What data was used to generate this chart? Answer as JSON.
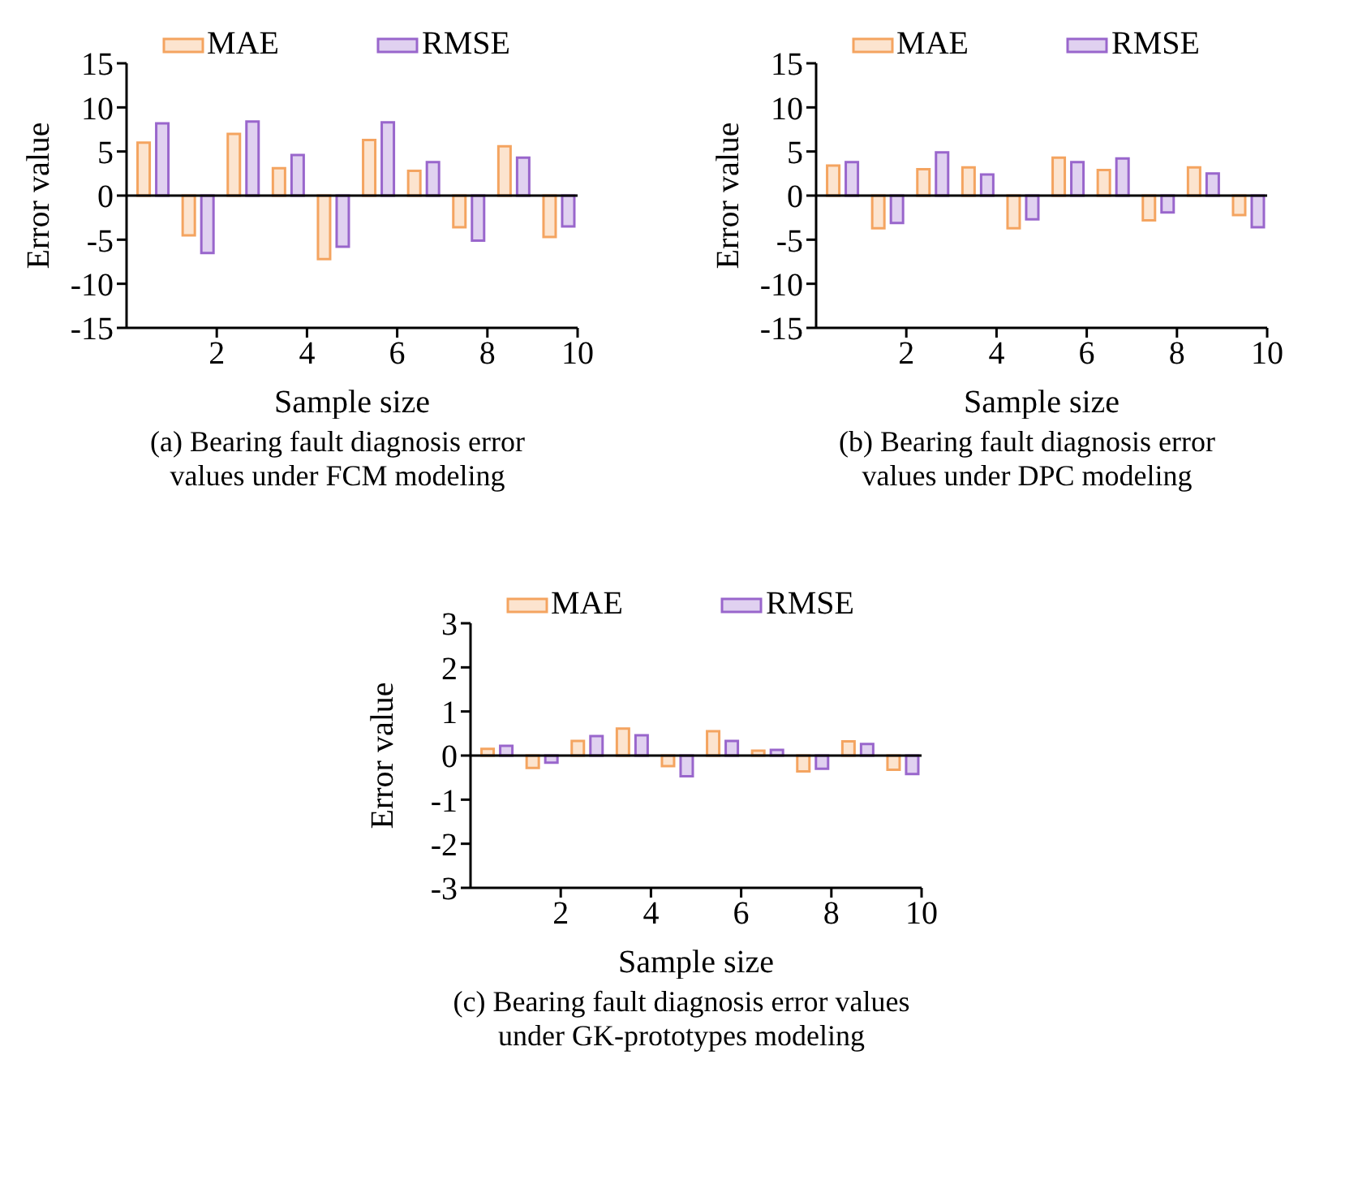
{
  "chart_data": [
    {
      "type": "bar",
      "title": "(a) Bearing fault diagnosis error values under FCM modeling",
      "xlabel": "Sample size",
      "ylabel": "Error value",
      "x": [
        0.6,
        1.6,
        2.6,
        3.6,
        4.6,
        5.6,
        6.6,
        7.6,
        8.6,
        9.6
      ],
      "xlim": [
        0,
        10
      ],
      "xticks": [
        2,
        4,
        6,
        8,
        10
      ],
      "ylim": [
        -15,
        15
      ],
      "yticks": [
        -15,
        -10,
        -5,
        0,
        5,
        10,
        15
      ],
      "legend": "top",
      "ref_lines": [
        {
          "axis": "y",
          "value": 0
        }
      ],
      "series": [
        {
          "name": "MAE",
          "color": "#f4a460",
          "values": [
            6.0,
            -4.5,
            7.0,
            3.1,
            -7.2,
            6.3,
            2.8,
            -3.6,
            5.6,
            -4.7
          ]
        },
        {
          "name": "RMSE",
          "color": "#9966cc",
          "values": [
            8.2,
            -6.5,
            8.4,
            4.6,
            -5.8,
            8.3,
            3.8,
            -5.1,
            4.3,
            -3.5
          ]
        }
      ]
    },
    {
      "type": "bar",
      "title": "(b) Bearing fault diagnosis error values under DPC modeling",
      "xlabel": "Sample size",
      "ylabel": "Error value",
      "x": [
        0.6,
        1.6,
        2.6,
        3.6,
        4.6,
        5.6,
        6.6,
        7.6,
        8.6,
        9.6
      ],
      "xlim": [
        0,
        10
      ],
      "xticks": [
        2,
        4,
        6,
        8,
        10
      ],
      "ylim": [
        -15,
        15
      ],
      "yticks": [
        -15,
        -10,
        -5,
        0,
        5,
        10,
        15
      ],
      "legend": "top",
      "ref_lines": [
        {
          "axis": "y",
          "value": 0
        }
      ],
      "series": [
        {
          "name": "MAE",
          "color": "#f4a460",
          "values": [
            3.4,
            -3.7,
            3.0,
            3.2,
            -3.7,
            4.3,
            2.9,
            -2.8,
            3.2,
            -2.2
          ]
        },
        {
          "name": "RMSE",
          "color": "#9966cc",
          "values": [
            3.8,
            -3.1,
            4.9,
            2.4,
            -2.7,
            3.8,
            4.2,
            -1.9,
            2.5,
            -3.6
          ]
        }
      ]
    },
    {
      "type": "bar",
      "title": "(c) Bearing fault diagnosis error values under  GK-prototypes modeling",
      "xlabel": "Sample size",
      "ylabel": "Error value",
      "x": [
        0.6,
        1.6,
        2.6,
        3.6,
        4.6,
        5.6,
        6.6,
        7.6,
        8.6,
        9.6
      ],
      "xlim": [
        0,
        10
      ],
      "xticks": [
        2,
        4,
        6,
        8,
        10
      ],
      "ylim": [
        -3,
        3
      ],
      "yticks": [
        -3,
        -2,
        -1,
        0,
        1,
        2,
        3
      ],
      "legend": "top",
      "ref_lines": [
        {
          "axis": "y",
          "value": 0
        }
      ],
      "series": [
        {
          "name": "MAE",
          "color": "#f4a460",
          "values": [
            0.15,
            -0.28,
            0.33,
            0.61,
            -0.24,
            0.55,
            0.11,
            -0.36,
            0.32,
            -0.32
          ]
        },
        {
          "name": "RMSE",
          "color": "#9966cc",
          "values": [
            0.22,
            -0.16,
            0.44,
            0.46,
            -0.47,
            0.33,
            0.13,
            -0.3,
            0.26,
            -0.42
          ]
        }
      ]
    }
  ]
}
